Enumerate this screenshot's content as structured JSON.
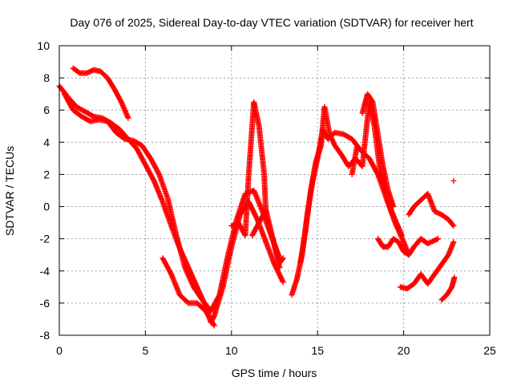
{
  "chart_data": {
    "type": "scatter",
    "title": "Day 076 of 2025, Sidereal Day-to-day VTEC variation (SDTVAR) for receiver hert",
    "xlabel": "GPS time / hours",
    "ylabel": "SDTVAR / TECUs",
    "xlim": [
      0,
      25
    ],
    "ylim": [
      -8,
      10
    ],
    "xticks": [
      0,
      5,
      10,
      15,
      20,
      25
    ],
    "yticks": [
      -8,
      -6,
      -4,
      -2,
      0,
      2,
      4,
      6,
      8,
      10
    ],
    "grid": true,
    "marker": "plus",
    "color": "#ff0000",
    "series": [
      {
        "x": [
          0.0,
          0.5,
          1.0,
          1.5,
          2.0,
          2.5,
          3.0,
          3.5,
          4.0,
          4.5,
          5.0,
          5.5,
          6.0,
          6.5,
          7.0,
          7.5,
          8.0,
          8.5,
          8.8,
          9.0,
          9.5,
          10.0,
          10.5,
          11.0,
          11.5,
          12.0,
          12.5,
          13.0
        ],
        "y": [
          7.5,
          6.8,
          6.2,
          5.9,
          5.6,
          5.5,
          5.2,
          4.8,
          4.2,
          3.6,
          2.6,
          1.6,
          0.3,
          -1.2,
          -2.6,
          -3.8,
          -5.0,
          -6.2,
          -7.2,
          -6.8,
          -5.0,
          -2.5,
          -0.5,
          0.3,
          -0.8,
          -2.2,
          -3.6,
          -4.7
        ]
      },
      {
        "x": [
          0.3,
          0.8,
          1.3,
          1.8,
          2.3,
          2.8,
          3.3,
          3.8,
          4.3,
          4.8,
          5.3,
          5.8,
          6.3,
          6.8,
          7.3,
          7.8,
          8.3,
          8.8,
          9.3,
          9.8,
          10.3,
          10.8,
          11.3,
          11.8,
          12.3,
          12.8
        ],
        "y": [
          7.0,
          6.0,
          5.6,
          5.3,
          5.4,
          5.3,
          4.6,
          4.2,
          4.1,
          3.8,
          3.0,
          2.0,
          0.5,
          -1.8,
          -3.8,
          -5.0,
          -5.8,
          -6.5,
          -5.5,
          -3.0,
          -0.8,
          0.8,
          1.0,
          -0.3,
          -1.8,
          -3.2
        ]
      },
      {
        "x": [
          0.8,
          1.2,
          1.6,
          2.0,
          2.4,
          2.8,
          3.2,
          3.6,
          4.0
        ],
        "y": [
          8.6,
          8.3,
          8.3,
          8.5,
          8.4,
          8.0,
          7.3,
          6.5,
          5.5
        ]
      },
      {
        "x": [
          6.0,
          6.5,
          7.0,
          7.5,
          8.0,
          8.5,
          9.0
        ],
        "y": [
          -3.2,
          -4.2,
          -5.5,
          -6.0,
          -6.0,
          -6.5,
          -7.4
        ]
      },
      {
        "x": [
          10.0,
          10.4,
          10.8,
          11.0,
          11.3,
          11.6,
          11.9,
          12.0,
          12.4,
          12.8,
          13.0
        ],
        "y": [
          -1.2,
          -1.0,
          -1.8,
          2.0,
          6.5,
          5.0,
          2.0,
          -0.5,
          -2.0,
          -3.5,
          -3.2
        ]
      },
      {
        "x": [
          11.2,
          11.6,
          12.0,
          12.4,
          12.8
        ],
        "y": [
          -1.8,
          -1.0,
          -0.2,
          -2.0,
          -3.8
        ]
      },
      {
        "x": [
          13.5,
          13.8,
          14.1,
          14.4,
          14.7,
          15.0,
          15.3,
          15.6,
          16.0,
          16.5,
          17.0,
          17.5,
          18.0,
          18.5,
          19.0,
          19.5,
          20.0,
          20.3
        ],
        "y": [
          -5.5,
          -4.5,
          -3.0,
          -0.5,
          1.5,
          3.0,
          4.8,
          4.2,
          4.6,
          4.5,
          4.2,
          3.5,
          3.0,
          2.0,
          0.5,
          -1.0,
          -2.2,
          -3.0
        ]
      },
      {
        "x": [
          14.0,
          14.3,
          14.6,
          14.9,
          15.2,
          15.4,
          15.7,
          16.0,
          16.4,
          16.8,
          17.2,
          17.6,
          18.0,
          18.3,
          18.6,
          19.0,
          19.5,
          19.9
        ],
        "y": [
          -3.5,
          -1.5,
          1.0,
          2.8,
          3.8,
          6.2,
          4.5,
          3.8,
          3.2,
          2.5,
          3.0,
          2.5,
          6.5,
          5.0,
          2.5,
          0.5,
          -0.8,
          -1.8
        ]
      },
      {
        "x": [
          17.6,
          17.9,
          18.2,
          18.5,
          18.8,
          19.1,
          19.4
        ],
        "y": [
          5.8,
          7.0,
          6.5,
          4.5,
          2.5,
          1.0,
          0.0
        ]
      },
      {
        "x": [
          18.5,
          18.8,
          19.1,
          19.4,
          19.7,
          20.0,
          20.3,
          20.6,
          21.0,
          21.4,
          21.8,
          22.0
        ],
        "y": [
          -2.0,
          -2.5,
          -2.5,
          -2.0,
          -2.2,
          -2.8,
          -3.0,
          -2.5,
          -2.0,
          -2.3,
          -2.1,
          -2.0
        ]
      },
      {
        "x": [
          20.3,
          20.6,
          20.9,
          21.2,
          21.4,
          21.8,
          22.2,
          22.6,
          22.9
        ],
        "y": [
          -0.5,
          0.0,
          0.3,
          0.6,
          0.8,
          -0.3,
          -0.5,
          -0.8,
          -1.2
        ]
      },
      {
        "x": [
          19.8,
          20.2,
          20.6,
          21.0,
          21.4,
          21.8,
          22.2,
          22.6,
          22.9
        ],
        "y": [
          -5.0,
          -5.1,
          -4.8,
          -4.2,
          -4.8,
          -4.2,
          -3.6,
          -3.0,
          -2.2
        ]
      },
      {
        "x": [
          22.2,
          22.5,
          22.8,
          22.95
        ],
        "y": [
          -5.8,
          -5.5,
          -5.0,
          -4.4
        ]
      },
      {
        "x": [
          17.0,
          17.3,
          22.9
        ],
        "y": [
          2.0,
          3.8,
          1.6
        ]
      }
    ]
  }
}
